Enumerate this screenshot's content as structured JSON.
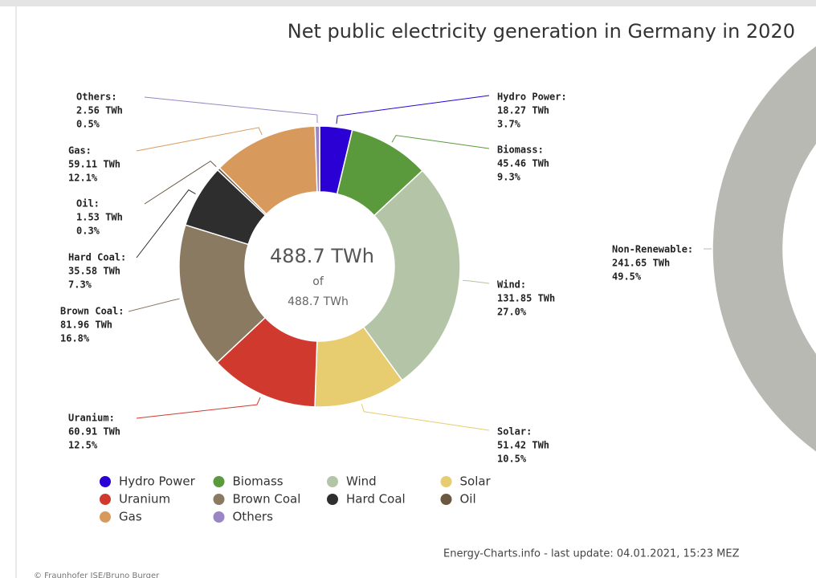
{
  "chart_data": [
    {
      "type": "donut",
      "title": "Net public electricity generation in Germany in 2020",
      "categories": [
        "Hydro Power",
        "Biomass",
        "Wind",
        "Solar",
        "Uranium",
        "Brown Coal",
        "Hard Coal",
        "Oil",
        "Gas",
        "Others"
      ],
      "label_names": [
        "Hydro Power:",
        "Biomass:",
        "Wind:",
        "Solar:",
        "Uranium:",
        "Brown Coal:",
        "Hard Coal:",
        "Oil:",
        "Gas:",
        "Others:"
      ],
      "values": [
        18.27,
        45.46,
        131.85,
        51.42,
        60.91,
        81.96,
        35.58,
        1.53,
        59.11,
        2.56
      ],
      "value_labels": [
        "18.27 TWh",
        "45.46 TWh",
        "131.85 TWh",
        "51.42 TWh",
        "60.91 TWh",
        "81.96 TWh",
        "35.58 TWh",
        "1.53 TWh",
        "59.11 TWh",
        "2.56 TWh"
      ],
      "percents": [
        3.7,
        9.3,
        27.0,
        10.5,
        12.5,
        16.8,
        7.3,
        0.3,
        12.1,
        0.5
      ],
      "percent_labels": [
        "3.7%",
        "9.3%",
        "27.0%",
        "10.5%",
        "12.5%",
        "16.8%",
        "7.3%",
        "0.3%",
        "12.1%",
        "0.5%"
      ],
      "colors": [
        "#2a00d5",
        "#5a9a3c",
        "#b4c4a6",
        "#e8cc70",
        "#d03a2e",
        "#8b7a62",
        "#2e2e2e",
        "#6b5840",
        "#d89a5c",
        "#9a86c4"
      ],
      "center_value": "488.7 TWh",
      "center_of": "of",
      "center_total": "488.7 TWh",
      "source": "Energy-Charts.info - last update: 04.01.2021, 15:23 MEZ"
    },
    {
      "type": "donut",
      "label_names": [
        "Non-Renewable:"
      ],
      "values": [
        241.65
      ],
      "value_labels": [
        "241.65 TWh"
      ],
      "percents": [
        49.5
      ],
      "percent_labels": [
        "49.5%"
      ],
      "colors": [
        "#b9b9b4"
      ]
    }
  ],
  "copyright": "© Fraunhofer ISE/Bruno Burger"
}
